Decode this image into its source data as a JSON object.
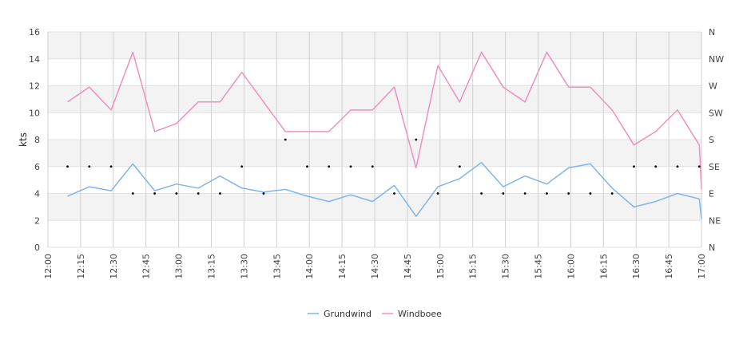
{
  "chart_data": {
    "type": "line",
    "ylabel": "kts",
    "ylim": [
      0,
      16
    ],
    "y_ticks": [
      0,
      2,
      4,
      6,
      8,
      10,
      12,
      14,
      16
    ],
    "right_axis_labels": [
      "N",
      "NE",
      "E",
      "SE",
      "S",
      "SW",
      "W",
      "NW",
      "N"
    ],
    "x_range_minutes": [
      720,
      1020
    ],
    "x_tick_labels": [
      "12:00",
      "12:15",
      "12:30",
      "12:45",
      "13:00",
      "13:15",
      "13:30",
      "13:45",
      "14:00",
      "14:15",
      "14:30",
      "14:45",
      "15:00",
      "15:15",
      "15:30",
      "15:45",
      "16:00",
      "16:15",
      "16:30",
      "16:45",
      "17:00"
    ],
    "x": [
      "12:09",
      "12:19",
      "12:29",
      "12:39",
      "12:49",
      "12:59",
      "13:09",
      "13:19",
      "13:29",
      "13:39",
      "13:49",
      "13:59",
      "14:09",
      "14:19",
      "14:29",
      "14:39",
      "14:49",
      "14:59",
      "15:09",
      "15:19",
      "15:29",
      "15:39",
      "15:49",
      "15:59",
      "16:09",
      "16:19",
      "16:29",
      "16:39",
      "16:49",
      "16:59",
      "17:00"
    ],
    "series": [
      {
        "name": "Grundwind",
        "color": "#7fb5e8",
        "values": [
          3.8,
          4.5,
          4.2,
          6.2,
          4.2,
          4.7,
          4.4,
          5.3,
          4.4,
          4.1,
          4.3,
          3.8,
          3.4,
          3.9,
          3.4,
          4.6,
          2.3,
          4.5,
          5.1,
          6.3,
          4.5,
          5.3,
          4.7,
          5.9,
          6.2,
          4.4,
          3.0,
          3.4,
          4.0,
          3.6,
          2.1
        ]
      },
      {
        "name": "Windboee",
        "color": "#f090c0",
        "values": [
          10.8,
          11.9,
          10.2,
          14.5,
          8.6,
          9.2,
          10.8,
          10.8,
          13.0,
          10.8,
          8.6,
          8.6,
          8.6,
          10.2,
          10.2,
          11.9,
          5.9,
          13.5,
          10.8,
          14.5,
          11.9,
          10.8,
          14.5,
          11.9,
          11.9,
          10.2,
          7.6,
          8.6,
          10.2,
          7.6,
          4.3
        ]
      }
    ],
    "direction_points": [
      {
        "x": "12:09",
        "dir": "SE"
      },
      {
        "x": "12:19",
        "dir": "SE"
      },
      {
        "x": "12:29",
        "dir": "SE"
      },
      {
        "x": "12:39",
        "dir": "E"
      },
      {
        "x": "12:49",
        "dir": "E"
      },
      {
        "x": "12:59",
        "dir": "E"
      },
      {
        "x": "13:09",
        "dir": "E"
      },
      {
        "x": "13:19",
        "dir": "E"
      },
      {
        "x": "13:29",
        "dir": "SE"
      },
      {
        "x": "13:39",
        "dir": "E"
      },
      {
        "x": "13:49",
        "dir": "S"
      },
      {
        "x": "13:59",
        "dir": "SE"
      },
      {
        "x": "14:09",
        "dir": "SE"
      },
      {
        "x": "14:19",
        "dir": "SE"
      },
      {
        "x": "14:29",
        "dir": "SE"
      },
      {
        "x": "14:39",
        "dir": "E"
      },
      {
        "x": "14:49",
        "dir": "S"
      },
      {
        "x": "14:59",
        "dir": "E"
      },
      {
        "x": "15:09",
        "dir": "SE"
      },
      {
        "x": "15:19",
        "dir": "E"
      },
      {
        "x": "15:29",
        "dir": "E"
      },
      {
        "x": "15:39",
        "dir": "E"
      },
      {
        "x": "15:49",
        "dir": "E"
      },
      {
        "x": "15:59",
        "dir": "E"
      },
      {
        "x": "16:09",
        "dir": "E"
      },
      {
        "x": "16:19",
        "dir": "E"
      },
      {
        "x": "16:29",
        "dir": "SE"
      },
      {
        "x": "16:39",
        "dir": "SE"
      },
      {
        "x": "16:49",
        "dir": "SE"
      },
      {
        "x": "16:59",
        "dir": "SE"
      }
    ],
    "legend": [
      "Grundwind",
      "Windboee"
    ],
    "legend_position": "bottom-center",
    "grid": true,
    "band_colors": [
      "#f3f3f3",
      "#ffffff"
    ]
  }
}
